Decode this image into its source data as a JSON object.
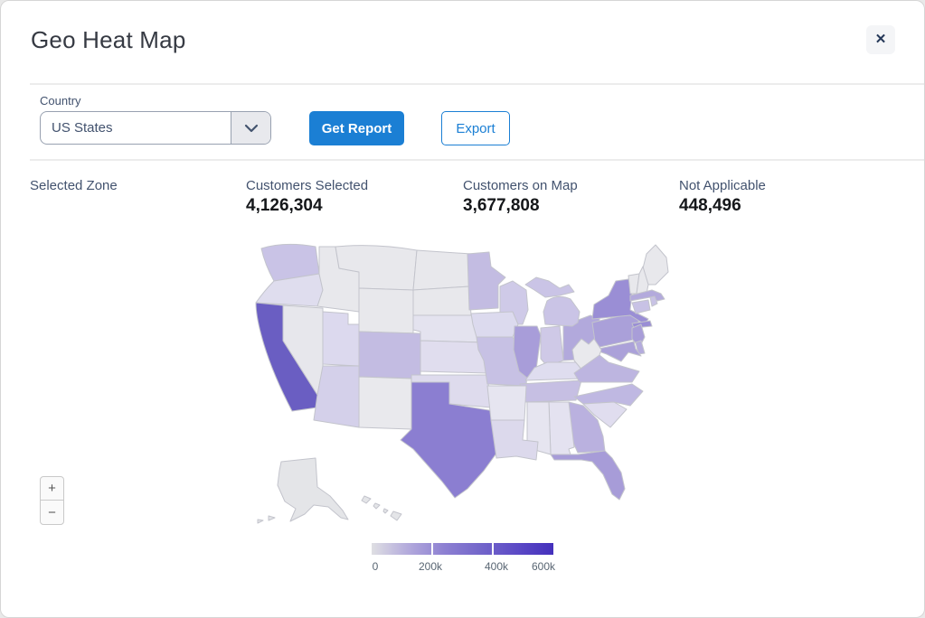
{
  "window": {
    "title": "Geo Heat Map",
    "close_label": "✕"
  },
  "controls": {
    "country_label": "Country",
    "country_value": "US States",
    "get_report_label": "Get Report",
    "export_label": "Export"
  },
  "stats": [
    {
      "label": "Selected Zone",
      "value": ""
    },
    {
      "label": "Customers Selected",
      "value": "4,126,304"
    },
    {
      "label": "Customers on Map",
      "value": "3,677,808"
    },
    {
      "label": "Not Applicable",
      "value": "448,496"
    }
  ],
  "map": {
    "zoom_in_label": "+",
    "zoom_out_label": "−",
    "legend": {
      "ticks": [
        "0",
        "200k",
        "400k",
        "600k"
      ],
      "gradient": [
        "#dfdfe3",
        "#b3aadc",
        "#8d80d2",
        "#7366ca",
        "#5c4ac6",
        "#4430bc"
      ]
    },
    "default_state_color": "#e8e8ec",
    "states": [
      {
        "id": "CA",
        "color": "#6a5ec2"
      },
      {
        "id": "TX",
        "color": "#8b7ed1"
      },
      {
        "id": "NY",
        "color": "#9a8ed5"
      },
      {
        "id": "LI",
        "color": "#9a8ed5"
      },
      {
        "id": "FL",
        "color": "#a79cd8"
      },
      {
        "id": "IL",
        "color": "#a89dd9"
      },
      {
        "id": "PA",
        "color": "#aaa0d9"
      },
      {
        "id": "NJ",
        "color": "#a89dd8"
      },
      {
        "id": "MD",
        "color": "#aba1d9"
      },
      {
        "id": "OH",
        "color": "#b2a9dc"
      },
      {
        "id": "MA",
        "color": "#b3aadc"
      },
      {
        "id": "DE",
        "color": "#b4abdd"
      },
      {
        "id": "GA",
        "color": "#bab1df"
      },
      {
        "id": "VA",
        "color": "#bdb5e0"
      },
      {
        "id": "NC",
        "color": "#bfb8e2"
      },
      {
        "id": "CO",
        "color": "#c3bce2"
      },
      {
        "id": "MN",
        "color": "#c3bce2"
      },
      {
        "id": "TN",
        "color": "#c6bfe3"
      },
      {
        "id": "MO",
        "color": "#c7c1e4"
      },
      {
        "id": "WA",
        "color": "#c9c3e6"
      },
      {
        "id": "CT",
        "color": "#c8c2e5"
      },
      {
        "id": "RI",
        "color": "#c8c2e5"
      },
      {
        "id": "MI",
        "color": "#cac4e6"
      },
      {
        "id": "WI",
        "color": "#cfcae8"
      },
      {
        "id": "IN",
        "color": "#cfc9e7"
      },
      {
        "id": "AZ",
        "color": "#d4d0ea"
      },
      {
        "id": "LA",
        "color": "#dcd9ec"
      },
      {
        "id": "UT",
        "color": "#dcd9ee"
      },
      {
        "id": "IA",
        "color": "#dcdaee"
      },
      {
        "id": "OK",
        "color": "#dedbed"
      },
      {
        "id": "OR",
        "color": "#dfddee"
      },
      {
        "id": "KY",
        "color": "#dfddef"
      },
      {
        "id": "KS",
        "color": "#e0ddee"
      },
      {
        "id": "SC",
        "color": "#e0ddef"
      },
      {
        "id": "NE",
        "color": "#e4e3ef"
      },
      {
        "id": "AL",
        "color": "#e4e2f0"
      },
      {
        "id": "MS",
        "color": "#e6e5f0"
      },
      {
        "id": "AR",
        "color": "#e6e5f0"
      },
      {
        "id": "NV",
        "color": "#e7e7ec"
      },
      {
        "id": "MT",
        "color": "#e8e8ec"
      },
      {
        "id": "WY",
        "color": "#e8e8ec"
      },
      {
        "id": "ID",
        "color": "#e8e8ec"
      },
      {
        "id": "NM",
        "color": "#e9e9ed"
      },
      {
        "id": "ND",
        "color": "#e8e8ec"
      },
      {
        "id": "SD",
        "color": "#e8e8ec"
      },
      {
        "id": "WV",
        "color": "#e9e9ed"
      },
      {
        "id": "VT",
        "color": "#e8e8ec"
      },
      {
        "id": "NH",
        "color": "#e8e8ec"
      },
      {
        "id": "ME",
        "color": "#e8e8ec"
      },
      {
        "id": "AK",
        "color": "#e4e5e8"
      },
      {
        "id": "AK2",
        "color": "#e4e5e8"
      },
      {
        "id": "AK3",
        "color": "#e4e5e8"
      },
      {
        "id": "HI",
        "color": "#e4e5e8"
      },
      {
        "id": "HI2",
        "color": "#e4e5e8"
      },
      {
        "id": "HI3",
        "color": "#e4e5e8"
      },
      {
        "id": "HI4",
        "color": "#e4e5e8"
      }
    ]
  },
  "colors": {
    "accent_blue": "#1b7fd4",
    "label_slate": "#42526e",
    "divider": "#ececec"
  }
}
